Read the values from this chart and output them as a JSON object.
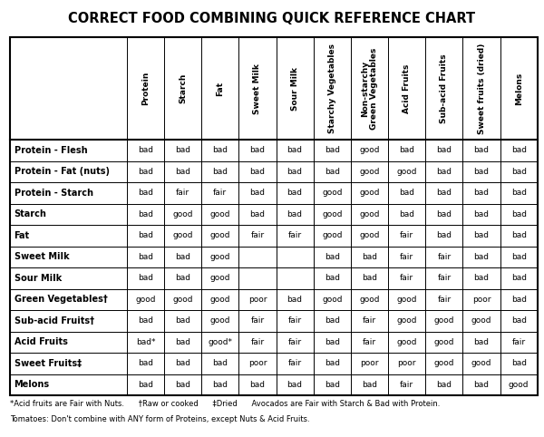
{
  "title": "CORRECT FOOD COMBINING QUICK REFERENCE CHART",
  "col_headers": [
    "Protein",
    "Starch",
    "Fat",
    "Sweet Milk",
    "Sour Milk",
    "Starchy Vegetables",
    "Non-starchy\nGreen Vegetables",
    "Acid Fruits",
    "Sub-acid Fruits",
    "Sweet fruits (dried)",
    "Melons"
  ],
  "row_headers": [
    "Protein - Flesh",
    "Protein - Fat (nuts)",
    "Protein - Starch",
    "Starch",
    "Fat",
    "Sweet Milk",
    "Sour Milk",
    "Green Vegetables†",
    "Sub-acid Fruits†",
    "Acid Fruits",
    "Sweet Fruits‡",
    "Melons"
  ],
  "table_data": [
    [
      "bad",
      "bad",
      "bad",
      "bad",
      "bad",
      "bad",
      "good",
      "bad",
      "bad",
      "bad",
      "bad"
    ],
    [
      "bad",
      "bad",
      "bad",
      "bad",
      "bad",
      "bad",
      "good",
      "good",
      "bad",
      "bad",
      "bad"
    ],
    [
      "bad",
      "fair",
      "fair",
      "bad",
      "bad",
      "good",
      "good",
      "bad",
      "bad",
      "bad",
      "bad"
    ],
    [
      "bad",
      "good",
      "good",
      "bad",
      "bad",
      "good",
      "good",
      "bad",
      "bad",
      "bad",
      "bad"
    ],
    [
      "bad",
      "good",
      "good",
      "fair",
      "fair",
      "good",
      "good",
      "fair",
      "bad",
      "bad",
      "bad"
    ],
    [
      "bad",
      "bad",
      "good",
      "",
      "",
      "bad",
      "bad",
      "fair",
      "fair",
      "bad",
      "bad"
    ],
    [
      "bad",
      "bad",
      "good",
      "",
      "",
      "bad",
      "bad",
      "fair",
      "fair",
      "bad",
      "bad"
    ],
    [
      "good",
      "good",
      "good",
      "poor",
      "bad",
      "good",
      "good",
      "good",
      "fair",
      "poor",
      "bad"
    ],
    [
      "bad",
      "bad",
      "good",
      "fair",
      "fair",
      "bad",
      "fair",
      "good",
      "good",
      "good",
      "bad"
    ],
    [
      "bad*",
      "bad",
      "good*",
      "fair",
      "fair",
      "bad",
      "fair",
      "good",
      "good",
      "bad",
      "fair"
    ],
    [
      "bad",
      "bad",
      "bad",
      "poor",
      "fair",
      "bad",
      "poor",
      "poor",
      "good",
      "good",
      "bad"
    ],
    [
      "bad",
      "bad",
      "bad",
      "bad",
      "bad",
      "bad",
      "bad",
      "fair",
      "bad",
      "bad",
      "good"
    ]
  ],
  "footnote_line1": "*Acid fruits are Fair with Nuts.      †Raw or cooked      ‡Dried      Avocados are Fair with Starch & Bad with Protein.",
  "footnote_line2": "Tomatoes: Don't combine with ANY form of Proteins, except Nuts & Acid Fruits.",
  "bg_color": "#ffffff",
  "text_color": "#000000",
  "border_color": "#000000",
  "title_fontsize": 10.5,
  "header_fontsize": 6.5,
  "row_label_fontsize": 7.0,
  "cell_fontsize": 6.5,
  "footnote_fontsize": 6.0
}
